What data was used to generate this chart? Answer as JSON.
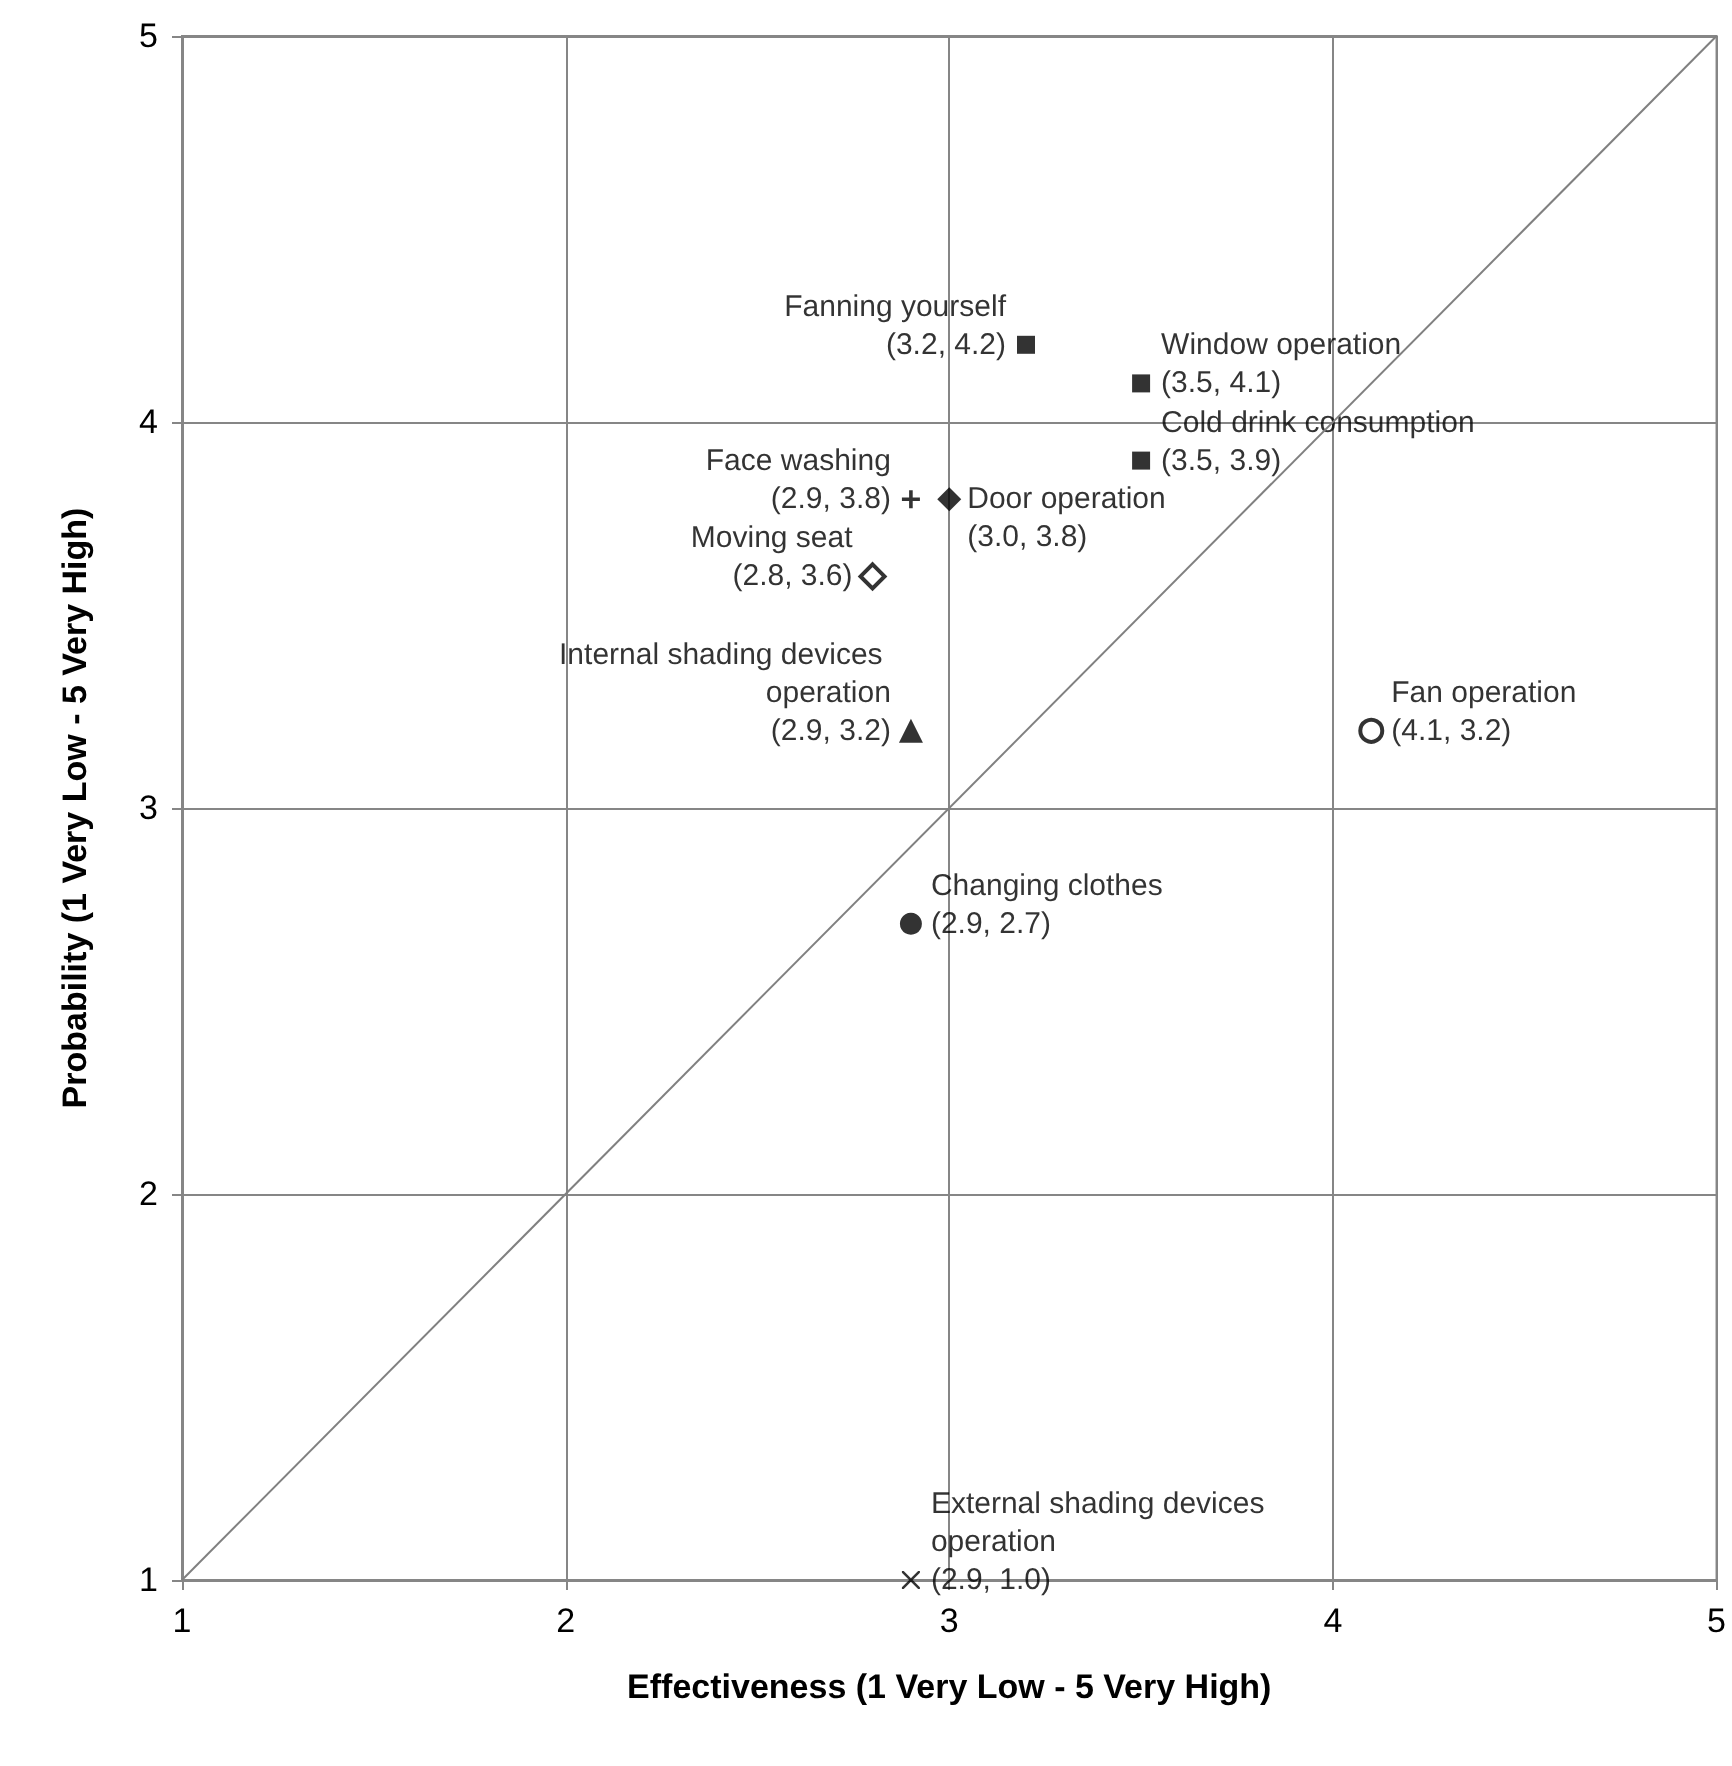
{
  "chart_data": {
    "type": "scatter",
    "xlabel": "Effectiveness (1 Very Low - 5 Very High)",
    "ylabel": "Probability (1 Very Low - 5 Very High)",
    "xlim": [
      1,
      5
    ],
    "ylim": [
      1,
      5
    ],
    "xticks": [
      1,
      2,
      3,
      4,
      5
    ],
    "yticks": [
      1,
      2,
      3,
      4,
      5
    ],
    "grid": true,
    "legend": false,
    "series": [
      {
        "name": "Fanning yourself",
        "color": "#000000",
        "marker": "square",
        "x": [
          3.2
        ],
        "values": [
          4.2
        ],
        "value_labels": [
          "(3.2, 4.2)"
        ]
      },
      {
        "name": "Window operation",
        "color": "#000000",
        "marker": "square",
        "x": [
          3.5
        ],
        "values": [
          4.1
        ],
        "value_labels": [
          "(3.5, 4.1)"
        ]
      },
      {
        "name": "Cold drink consumption",
        "color": "#000000",
        "marker": "square",
        "x": [
          3.5
        ],
        "values": [
          3.9
        ],
        "value_labels": [
          "(3.5, 3.9)"
        ]
      },
      {
        "name": "Face washing",
        "color": "#000000",
        "marker": "plus",
        "x": [
          2.9
        ],
        "values": [
          3.8
        ],
        "value_labels": [
          "(2.9, 3.8)"
        ]
      },
      {
        "name": "Door operation",
        "color": "#000000",
        "marker": "diamond",
        "x": [
          3.0
        ],
        "values": [
          3.8
        ],
        "value_labels": [
          "(3.0, 3.8)"
        ]
      },
      {
        "name": "Moving seat",
        "color": "#000000",
        "marker": "diamond-open",
        "x": [
          2.8
        ],
        "values": [
          3.6
        ],
        "value_labels": [
          "(2.8, 3.6)"
        ]
      },
      {
        "name": "Internal shading devices operation",
        "color": "#000000",
        "marker": "triangle",
        "x": [
          2.9
        ],
        "values": [
          3.2
        ],
        "value_labels": [
          "(2.9, 3.2)"
        ]
      },
      {
        "name": "Fan operation",
        "color": "#000000",
        "marker": "circle-open",
        "x": [
          4.1
        ],
        "values": [
          3.2
        ],
        "value_labels": [
          "(4.1, 3.2)"
        ]
      },
      {
        "name": "Changing clothes",
        "color": "#000000",
        "marker": "circle",
        "x": [
          2.9
        ],
        "values": [
          2.7
        ],
        "value_labels": [
          "(2.9, 2.7)"
        ]
      },
      {
        "name": "External shading devices operation",
        "color": "#000000",
        "marker": "cross",
        "x": [
          2.9
        ],
        "values": [
          1.0
        ],
        "value_labels": [
          "(2.9, 1.0)"
        ]
      },
      {
        "type": "line",
        "color": "#808080",
        "marker": "none",
        "x": [
          1,
          5
        ],
        "values": [
          1,
          5
        ]
      }
    ]
  }
}
